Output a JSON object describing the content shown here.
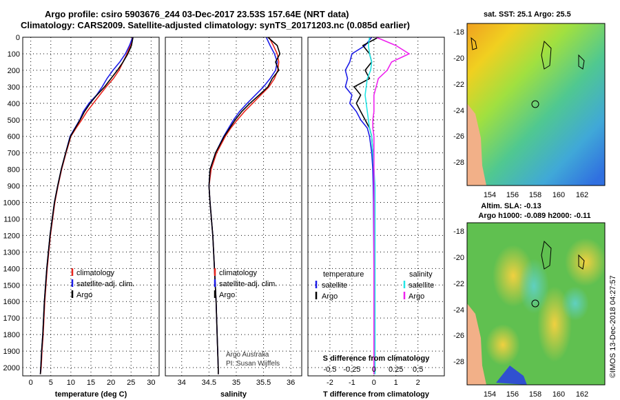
{
  "header": {
    "line1": "Argo profile: csiro 5903676_244 03-Dec-2017 23.53S 157.64E (NRT data)",
    "line2": "Climatology: CARS2009. Satellite-adjusted climatology: synTS_20171203.nc (0.085d earlier)"
  },
  "colors": {
    "climatology": "#e8241c",
    "satellite": "#1c1ce8",
    "argo": "#000000",
    "satellite_s": "#22e6e6",
    "argo_s": "#ee22ee"
  },
  "chart_data": [
    {
      "type": "line",
      "title": "",
      "xlabel": "temperature (deg C)",
      "ylabel": "",
      "xlim": [
        -2,
        32
      ],
      "ylim": [
        2050,
        0
      ],
      "xticks": [
        0,
        5,
        10,
        15,
        20,
        25,
        30
      ],
      "yticks": [
        0,
        100,
        200,
        300,
        400,
        500,
        600,
        700,
        800,
        900,
        1000,
        1100,
        1200,
        1300,
        1400,
        1500,
        1600,
        1700,
        1800,
        1900,
        2000
      ],
      "legend": [
        "climatology",
        "satellite-adj. clim.",
        "Argo"
      ],
      "series": [
        {
          "name": "climatology",
          "color": "climatology",
          "x": [
            25.3,
            24.8,
            24.0,
            23.0,
            22.0,
            20.6,
            18.8,
            17.2,
            15.6,
            14.0,
            12.7,
            11.3,
            10.0,
            8.8,
            7.7,
            6.8,
            6.0,
            4.9,
            4.1,
            3.5,
            3.1,
            2.8,
            2.6,
            2.4
          ],
          "y": [
            0,
            50,
            100,
            150,
            200,
            250,
            300,
            350,
            400,
            450,
            500,
            550,
            600,
            700,
            800,
            900,
            1000,
            1200,
            1400,
            1600,
            1800,
            1900,
            2000,
            2040
          ]
        },
        {
          "name": "satellite-adj. clim.",
          "color": "satellite",
          "x": [
            25.4,
            24.6,
            23.6,
            22.2,
            20.5,
            19.0,
            17.8,
            16.4,
            14.5,
            13.1,
            12.2,
            11.0,
            9.8,
            8.7,
            7.6,
            6.7,
            5.9,
            4.8,
            4.0,
            3.4,
            3.0,
            2.7,
            2.5,
            2.4
          ],
          "y": [
            0,
            50,
            100,
            150,
            200,
            250,
            300,
            350,
            400,
            450,
            500,
            550,
            600,
            700,
            800,
            900,
            1000,
            1200,
            1400,
            1600,
            1800,
            1900,
            2000,
            2040
          ]
        },
        {
          "name": "Argo",
          "color": "argo",
          "x": [
            25.5,
            25.1,
            24.2,
            23.0,
            21.6,
            20.0,
            18.4,
            16.5,
            14.8,
            13.4,
            12.3,
            11.1,
            9.9,
            8.7,
            7.6,
            6.7,
            5.9,
            4.8,
            4.0,
            3.4,
            3.0,
            2.7,
            2.5,
            2.4
          ],
          "y": [
            0,
            50,
            100,
            150,
            200,
            250,
            300,
            350,
            400,
            450,
            500,
            550,
            600,
            700,
            800,
            900,
            1000,
            1200,
            1400,
            1600,
            1800,
            1900,
            2000,
            2040
          ]
        }
      ]
    },
    {
      "type": "line",
      "title": "",
      "xlabel": "salinity",
      "ylabel": "",
      "xlim": [
        33.7,
        36.2
      ],
      "ylim": [
        2050,
        0
      ],
      "xticks": [
        34,
        34.5,
        35,
        35.5,
        36
      ],
      "legend": [
        "climatology",
        "satellite-adj. clim.",
        "Argo"
      ],
      "credit_line1": "Argo Australia",
      "credit_line2": "PI: Susan Wijffels",
      "series": [
        {
          "name": "climatology",
          "color": "climatology",
          "x": [
            35.6,
            35.68,
            35.75,
            35.78,
            35.76,
            35.7,
            35.6,
            35.45,
            35.3,
            35.15,
            35.02,
            34.9,
            34.8,
            34.64,
            34.54,
            34.5,
            34.52,
            34.57,
            34.6,
            34.63,
            34.65,
            34.66,
            34.67,
            34.67
          ],
          "y": [
            0,
            50,
            100,
            150,
            200,
            250,
            300,
            350,
            400,
            450,
            500,
            550,
            600,
            700,
            800,
            900,
            1000,
            1200,
            1400,
            1600,
            1800,
            1900,
            2000,
            2040
          ]
        },
        {
          "name": "satellite-adj. clim.",
          "color": "satellite",
          "x": [
            35.55,
            35.62,
            35.7,
            35.75,
            35.72,
            35.62,
            35.5,
            35.35,
            35.2,
            35.06,
            34.95,
            34.86,
            34.77,
            34.62,
            34.52,
            34.5,
            34.52,
            34.57,
            34.6,
            34.63,
            34.65,
            34.66,
            34.67,
            34.67
          ],
          "y": [
            0,
            50,
            100,
            150,
            200,
            250,
            300,
            350,
            400,
            450,
            500,
            550,
            600,
            700,
            800,
            900,
            1000,
            1200,
            1400,
            1600,
            1800,
            1900,
            2000,
            2040
          ]
        },
        {
          "name": "Argo",
          "color": "argo",
          "x": [
            35.58,
            35.75,
            35.8,
            35.72,
            35.78,
            35.66,
            35.58,
            35.42,
            35.25,
            35.1,
            34.98,
            34.88,
            34.78,
            34.62,
            34.52,
            34.5,
            34.52,
            34.57,
            34.6,
            34.63,
            34.65,
            34.66,
            34.67,
            34.67
          ],
          "y": [
            0,
            50,
            100,
            150,
            200,
            250,
            300,
            350,
            400,
            450,
            500,
            550,
            600,
            700,
            800,
            900,
            1000,
            1200,
            1400,
            1600,
            1800,
            1900,
            2000,
            2040
          ]
        }
      ]
    },
    {
      "type": "line",
      "title": "",
      "xlabel": "T difference from climatology",
      "xlabel_top": "S difference from climatology",
      "ylabel": "",
      "xlim": [
        -3,
        3.2
      ],
      "ylim": [
        2050,
        0
      ],
      "xticks": [
        -2,
        -1,
        0,
        1,
        2
      ],
      "xticks_s_labels": [
        "-0.5",
        "-0.25",
        "0",
        "0.25",
        "0.5"
      ],
      "xticks_s_pos": [
        -2,
        -1,
        0,
        1,
        2
      ],
      "legend_t_head": "temperature",
      "legend_s_head": "salinity",
      "legend_t": [
        "satellite",
        "Argo"
      ],
      "legend_s": [
        "satellite",
        "Argo"
      ],
      "series": [
        {
          "name": "T satellite",
          "color": "satellite",
          "x": [
            -0.1,
            -0.4,
            -1.0,
            -1.1,
            -1.3,
            -1.2,
            -1.3,
            -1.0,
            -1.1,
            -0.8,
            -0.6,
            -0.3,
            -0.2,
            -0.1,
            -0.05,
            -0.03,
            -0.02,
            -0.01,
            0,
            0,
            0,
            0
          ],
          "y": [
            0,
            50,
            100,
            150,
            200,
            250,
            300,
            350,
            400,
            450,
            500,
            550,
            600,
            700,
            800,
            900,
            1000,
            1200,
            1400,
            1600,
            1800,
            2040
          ]
        },
        {
          "name": "T Argo",
          "color": "argo",
          "x": [
            0.2,
            -0.5,
            -0.2,
            -0.1,
            -0.4,
            -0.2,
            -0.9,
            -0.6,
            -0.8,
            -0.6,
            -0.4,
            -0.2,
            -0.1,
            -0.05,
            0,
            0,
            0,
            0,
            0,
            0,
            0,
            0
          ],
          "y": [
            0,
            50,
            100,
            150,
            200,
            250,
            300,
            350,
            400,
            450,
            500,
            550,
            600,
            700,
            800,
            900,
            1000,
            1200,
            1400,
            1600,
            1800,
            2040
          ]
        },
        {
          "name": "S satellite",
          "color": "satellite_s",
          "x": [
            -0.2,
            -0.25,
            -0.2,
            -0.1,
            -0.15,
            -0.3,
            -0.35,
            -0.4,
            -0.35,
            -0.3,
            -0.25,
            -0.2,
            -0.1,
            -0.05,
            0,
            0.05,
            0.05,
            0.05,
            0.05,
            0.05,
            0.05,
            0.05
          ],
          "y": [
            0,
            50,
            100,
            150,
            200,
            250,
            300,
            350,
            400,
            450,
            500,
            550,
            600,
            700,
            800,
            900,
            1000,
            1200,
            1400,
            1600,
            1800,
            2040
          ]
        },
        {
          "name": "S Argo",
          "color": "argo_s",
          "x": [
            0.1,
            1.0,
            1.6,
            0.8,
            0.6,
            0.2,
            0.1,
            0.0,
            0.0,
            0.0,
            -0.05,
            -0.05,
            0,
            0,
            0,
            0,
            0,
            0,
            0,
            0,
            0,
            0
          ],
          "y": [
            0,
            50,
            100,
            150,
            200,
            250,
            300,
            350,
            400,
            450,
            500,
            550,
            600,
            700,
            800,
            900,
            1000,
            1200,
            1400,
            1600,
            1800,
            2040
          ]
        }
      ]
    }
  ],
  "maps": {
    "top_title": "sat. SST: 25.1  Argo: 25.5",
    "bottom_title_1": "Altim. SLA: -0.13",
    "bottom_title_2": "Argo h1000: -0.089  h2000: -0.11",
    "xticks": [
      "154",
      "156",
      "158",
      "160",
      "162"
    ],
    "yticks": [
      "-18",
      "-20",
      "-22",
      "-24",
      "-26",
      "-28"
    ]
  },
  "footer": {
    "stamp": "©IMOS 13-Dec-2018 04:27:57"
  }
}
